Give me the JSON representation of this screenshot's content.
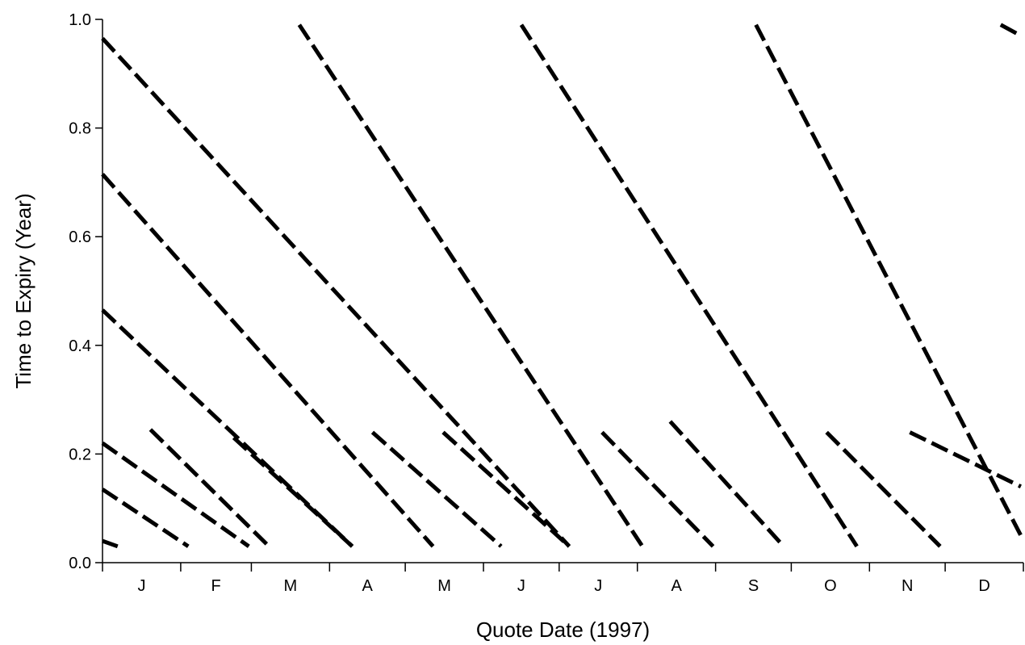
{
  "chart_data": {
    "type": "scatter",
    "xlabel": "Quote Date (1997)",
    "ylabel": "Time to Expiry (Year)",
    "xlim": [
      "1997-01-01",
      "1997-12-31"
    ],
    "ylim": [
      0,
      1.0
    ],
    "grid": false,
    "x_tick_labels": [
      "J",
      "F",
      "M",
      "A",
      "M",
      "J",
      "J",
      "A",
      "S",
      "O",
      "N",
      "D"
    ],
    "y_tick_labels": [
      "0.0",
      "0.2",
      "0.4",
      "0.6",
      "0.8",
      "1.0"
    ],
    "y_ticks": [
      0.0,
      0.2,
      0.4,
      0.6,
      0.8,
      1.0
    ],
    "series": [
      {
        "x": [
          "1997-01-01",
          "1997-01-07"
        ],
        "y": [
          0.04,
          0.03
        ]
      },
      {
        "x": [
          "1997-01-01",
          "1997-02-04"
        ],
        "y": [
          0.135,
          0.03
        ]
      },
      {
        "x": [
          "1997-01-01",
          "1997-02-28"
        ],
        "y": [
          0.22,
          0.03
        ]
      },
      {
        "x": [
          "1997-01-20",
          "1997-03-08"
        ],
        "y": [
          0.245,
          0.03
        ]
      },
      {
        "x": [
          "1997-01-01",
          "1997-04-10"
        ],
        "y": [
          0.465,
          0.03
        ]
      },
      {
        "x": [
          "1997-02-22",
          "1997-04-10"
        ],
        "y": [
          0.23,
          0.03
        ]
      },
      {
        "x": [
          "1997-01-01",
          "1997-05-12"
        ],
        "y": [
          0.715,
          0.03
        ]
      },
      {
        "x": [
          "1997-04-18",
          "1997-06-08"
        ],
        "y": [
          0.24,
          0.03
        ]
      },
      {
        "x": [
          "1997-05-16",
          "1997-07-05"
        ],
        "y": [
          0.24,
          0.03
        ]
      },
      {
        "x": [
          "1997-01-01",
          "1997-07-05"
        ],
        "y": [
          0.965,
          0.03
        ]
      },
      {
        "x": [
          "1997-03-20",
          "1997-08-03"
        ],
        "y": [
          0.99,
          0.03
        ]
      },
      {
        "x": [
          "1997-07-18",
          "1997-08-31"
        ],
        "y": [
          0.24,
          0.03
        ]
      },
      {
        "x": [
          "1997-08-14",
          "1997-09-28"
        ],
        "y": [
          0.26,
          0.03
        ]
      },
      {
        "x": [
          "1997-06-16",
          "1997-10-27"
        ],
        "y": [
          0.99,
          0.03
        ]
      },
      {
        "x": [
          "1997-10-15",
          "1997-11-29"
        ],
        "y": [
          0.24,
          0.03
        ]
      },
      {
        "x": [
          "1997-09-17",
          "1997-12-31"
        ],
        "y": [
          0.99,
          0.05
        ]
      },
      {
        "x": [
          "1997-11-17",
          "1997-12-31"
        ],
        "y": [
          0.24,
          0.14
        ]
      },
      {
        "x": [
          "1997-12-23",
          "1997-12-31"
        ],
        "y": [
          0.99,
          0.97
        ]
      }
    ]
  }
}
